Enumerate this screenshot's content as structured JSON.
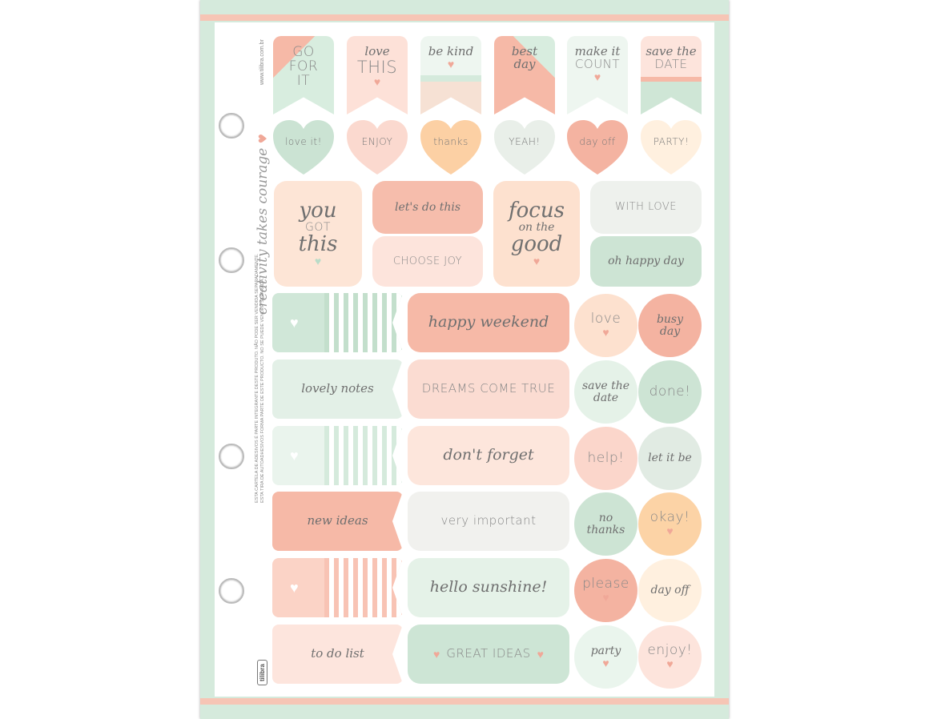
{
  "brand": {
    "logo": "tilibra",
    "url": "www.tilibra.com.br",
    "tagline": "creativity takes courage",
    "notice_pt": "ESTA CARTELA DE ADESIVOS É PARTE INTEGRANTE DESTE PRODUTO. NÃO PODE SER VENDIDA SEPARADAMENTE.",
    "notice_es": "ESTA TIRA DE AUTOADHESIVOS FORMA PARTE DE ESTE PRODUCTO. NO SE PUEDE VENDER SEPARADA."
  },
  "colors": {
    "mint": "#d5eadc",
    "salmon": "#f6c0ae",
    "peach": "#fde3d3",
    "orange": "#fcd3a6",
    "grey": "#efefeb",
    "cream": "#fff0df"
  },
  "flags": [
    {
      "lines": [
        "GO",
        "FOR",
        "IT"
      ],
      "style": "caps",
      "bg": "#d8eddf",
      "corner": "#f6b9a7"
    },
    {
      "lines": [
        "love",
        "THIS"
      ],
      "style": "mixed",
      "bg": "#fde1d8",
      "heart": true
    },
    {
      "lines": [
        "be kind"
      ],
      "style": "script",
      "bg": "#eef6f0",
      "bottom": "#f6e1d4",
      "heart": true
    },
    {
      "lines": [
        "best",
        "day"
      ],
      "style": "script",
      "bg": "#f6b9a7",
      "corner": "#d8eddf"
    },
    {
      "lines": [
        "make it",
        "COUNT"
      ],
      "style": "mixed",
      "bg": "#eef6f0",
      "heart": true
    },
    {
      "lines": [
        "save the",
        "DATE"
      ],
      "style": "mixed",
      "bg": "#fde4dc",
      "bottom": "#cfe6d6"
    }
  ],
  "hearts": [
    {
      "label": "love it!",
      "bg": "#cbe3d3"
    },
    {
      "label": "ENJOY",
      "bg": "#fbd9cf"
    },
    {
      "label": "thanks",
      "bg": "#fcd0a4"
    },
    {
      "label": "YEAH!",
      "bg": "#e9efe9"
    },
    {
      "label": "day off",
      "bg": "#f4b3a1"
    },
    {
      "label": "PARTY!",
      "bg": "#fff0df"
    }
  ],
  "big": [
    {
      "lines": [
        "you",
        "GOT",
        "this"
      ],
      "bg": "#fde5d6"
    },
    {
      "lines": [
        "let's do this"
      ],
      "bg": "#f6bdac"
    },
    {
      "lines": [
        "CHOOSE JOY"
      ],
      "bg": "#fde4dc"
    },
    {
      "lines": [
        "focus",
        "on the",
        "good"
      ],
      "bg": "#fde1cf"
    },
    {
      "lines": [
        "WITH LOVE"
      ],
      "bg": "#eef1ed"
    },
    {
      "lines": [
        "oh happy day"
      ],
      "bg": "#cde4d4"
    }
  ],
  "left_tabs": [
    {
      "label": "",
      "bg": "#d0e7d8",
      "striped": true
    },
    {
      "label": "lovely notes",
      "bg": "#e3f0e7"
    },
    {
      "label": "",
      "bg": "#eaf4ed",
      "striped": true
    },
    {
      "label": "new ideas",
      "bg": "#f6b9a7"
    },
    {
      "label": "",
      "bg": "#fbd3c6",
      "striped": true
    },
    {
      "label": "to do list",
      "bg": "#fde5dd"
    }
  ],
  "mid_labels": [
    {
      "label": "happy weekend",
      "bg": "#f6b9a7",
      "style": "script"
    },
    {
      "label": "DREAMS COME TRUE",
      "bg": "#fbdcd2",
      "style": "caps"
    },
    {
      "label": "don't forget",
      "bg": "#fde6dc",
      "style": "script"
    },
    {
      "label": "very important",
      "bg": "#f1f1ee",
      "style": "sans"
    },
    {
      "label": "hello sunshine!",
      "bg": "#e5f2e8",
      "style": "script"
    },
    {
      "label": "GREAT IDEAS",
      "bg": "#cde5d5",
      "style": "caps"
    }
  ],
  "circles": [
    {
      "label": "love",
      "bg": "#fde1cf"
    },
    {
      "label": "busy day",
      "bg": "#f4b3a1"
    },
    {
      "label": "save the date",
      "bg": "#e5f2e8"
    },
    {
      "label": "done!",
      "bg": "#cde4d4"
    },
    {
      "label": "help!",
      "bg": "#fbd6cb"
    },
    {
      "label": "let it be",
      "bg": "#e1ebe3"
    },
    {
      "label": "no thanks",
      "bg": "#cde4d4"
    },
    {
      "label": "okay!",
      "bg": "#fcd3a6"
    },
    {
      "label": "please",
      "bg": "#f4b3a1"
    },
    {
      "label": "day off",
      "bg": "#fff0df"
    },
    {
      "label": "party",
      "bg": "#eaf5ed"
    },
    {
      "label": "enjoy!",
      "bg": "#fde4dc"
    }
  ]
}
